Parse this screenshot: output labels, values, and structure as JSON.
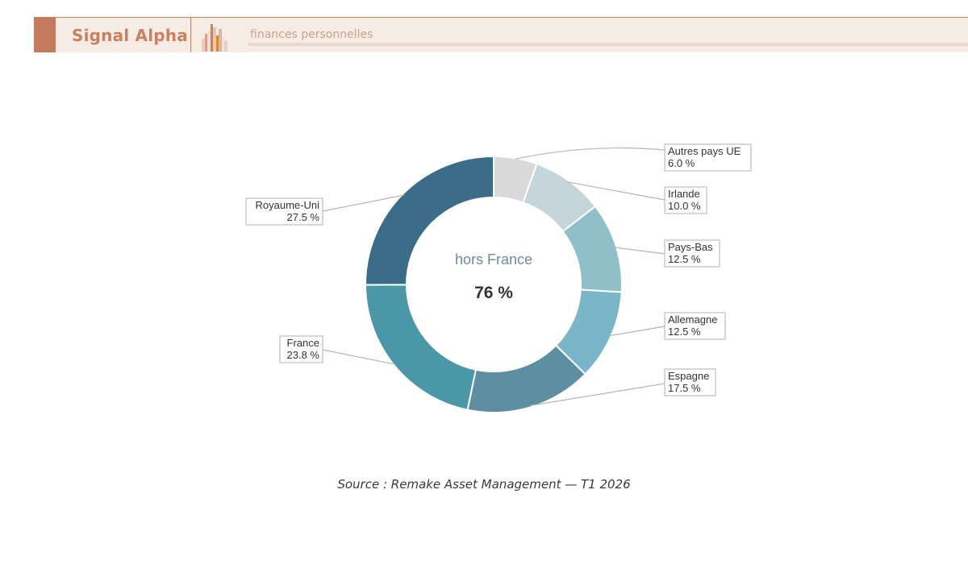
{
  "header": {
    "brand": "Signal Alpha",
    "subtitle": "finances personnelles",
    "logo_icon": "bar-chart-logo-icon",
    "colors": {
      "accent": "#c47b5d",
      "brand_text": "#c8825f",
      "banner_bg": "#f6ece5"
    }
  },
  "chart_data": {
    "type": "pie",
    "donut": true,
    "center_label": "hors France",
    "center_value": "76 %",
    "slices": [
      {
        "name": "Autres pays UE",
        "value": 6.0,
        "label": "6.0 %",
        "color": "#d9d9d9"
      },
      {
        "name": "Irlande",
        "value": 10.0,
        "label": "10.0 %",
        "color": "#c5d5dc"
      },
      {
        "name": "Pays-Bas",
        "value": 12.5,
        "label": "12.5 %",
        "color": "#8fbfc8"
      },
      {
        "name": "Allemagne",
        "value": 12.5,
        "label": "12.5 %",
        "color": "#7bb5ca"
      },
      {
        "name": "Espagne",
        "value": 17.5,
        "label": "17.5 %",
        "color": "#5e8fa0"
      },
      {
        "name": "France",
        "value": 23.8,
        "label": "23.8 %",
        "color": "#4a98a7"
      },
      {
        "name": "Royaume-Uni",
        "value": 27.5,
        "label": "27.5 %",
        "color": "#3b6d88"
      }
    ]
  },
  "source": "Source : Remake Asset Management — T1 2026"
}
